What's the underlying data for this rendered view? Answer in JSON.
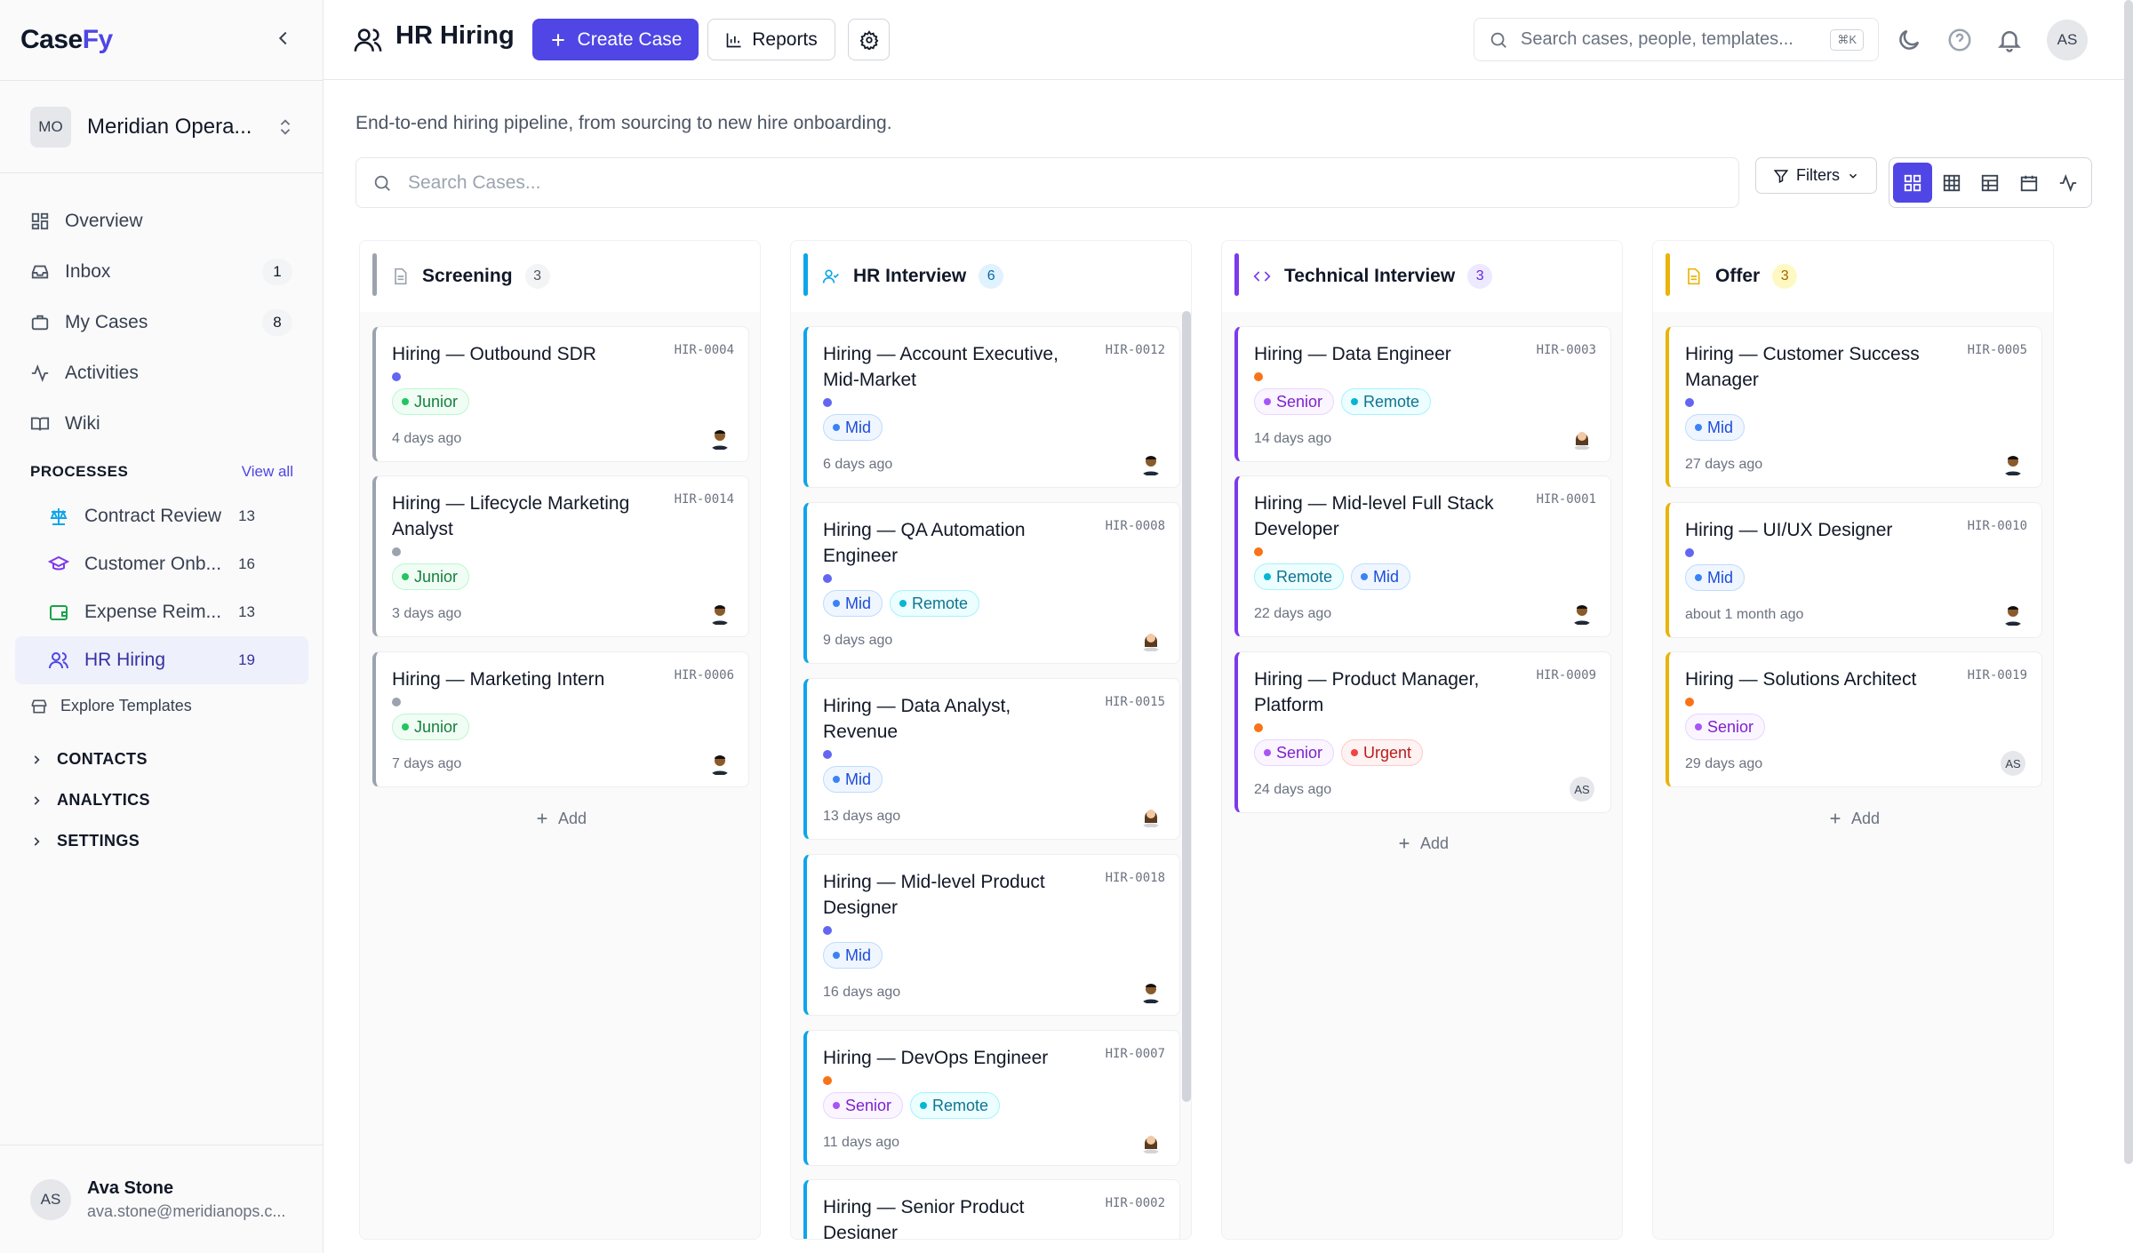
{
  "brand": {
    "part1": "Case",
    "part2": "Fy"
  },
  "workspace": {
    "initials": "MO",
    "name": "Meridian Opera..."
  },
  "nav": {
    "overview": "Overview",
    "inbox": "Inbox",
    "inbox_count": "1",
    "my_cases": "My Cases",
    "my_cases_count": "8",
    "activities": "Activities",
    "wiki": "Wiki"
  },
  "processes": {
    "heading": "PROCESSES",
    "view_all": "View all",
    "items": [
      {
        "label": "Contract Review",
        "count": "13"
      },
      {
        "label": "Customer Onb...",
        "count": "16"
      },
      {
        "label": "Expense Reim...",
        "count": "13"
      },
      {
        "label": "HR Hiring",
        "count": "19"
      }
    ],
    "explore": "Explore Templates"
  },
  "sections": {
    "contacts": "CONTACTS",
    "analytics": "ANALYTICS",
    "settings": "SETTINGS"
  },
  "user": {
    "initials": "AS",
    "name": "Ava Stone",
    "email": "ava.stone@meridianops.c..."
  },
  "topbar": {
    "title": "HR Hiring",
    "create_case": "Create Case",
    "reports": "Reports",
    "search_placeholder": "Search cases, people, templates...",
    "shortcut": "⌘K",
    "avatar": "AS"
  },
  "main": {
    "subtitle": "End-to-end hiring pipeline, from sourcing to new hire onboarding.",
    "search_cases_placeholder": "Search Cases...",
    "filters": "Filters"
  },
  "colors": {
    "accent": "#4f46e5",
    "screening": "#9ca3af",
    "hr_interview": "#0ea5e9",
    "technical_interview": "#7c3aed",
    "offer": "#eab308"
  },
  "columns": [
    {
      "title": "Screening",
      "count": "3",
      "add": "Add",
      "cards": [
        {
          "title": "Hiring — Outbound SDR",
          "id": "HIR-0004",
          "tags": [
            "Junior"
          ],
          "time": "4 days ago"
        },
        {
          "title": "Hiring — Lifecycle Marketing Analyst",
          "id": "HIR-0014",
          "tags": [
            "Junior"
          ],
          "time": "3 days ago"
        },
        {
          "title": "Hiring — Marketing Intern",
          "id": "HIR-0006",
          "tags": [
            "Junior"
          ],
          "time": "7 days ago"
        }
      ]
    },
    {
      "title": "HR Interview",
      "count": "6",
      "cards": [
        {
          "title": "Hiring — Account Executive, Mid-Market",
          "id": "HIR-0012",
          "tags": [
            "Mid"
          ],
          "time": "6 days ago"
        },
        {
          "title": "Hiring — QA Automation Engineer",
          "id": "HIR-0008",
          "tags": [
            "Mid",
            "Remote"
          ],
          "time": "9 days ago"
        },
        {
          "title": "Hiring — Data Analyst, Revenue",
          "id": "HIR-0015",
          "tags": [
            "Mid"
          ],
          "time": "13 days ago"
        },
        {
          "title": "Hiring — Mid-level Product Designer",
          "id": "HIR-0018",
          "tags": [
            "Mid"
          ],
          "time": "16 days ago"
        },
        {
          "title": "Hiring — DevOps Engineer",
          "id": "HIR-0007",
          "tags": [
            "Senior",
            "Remote"
          ],
          "time": "11 days ago"
        },
        {
          "title": "Hiring — Senior Product Designer",
          "id": "HIR-0002",
          "tags": [],
          "time": ""
        }
      ]
    },
    {
      "title": "Technical Interview",
      "count": "3",
      "add": "Add",
      "cards": [
        {
          "title": "Hiring — Data Engineer",
          "id": "HIR-0003",
          "tags": [
            "Senior",
            "Remote"
          ],
          "time": "14 days ago"
        },
        {
          "title": "Hiring — Mid-level Full Stack Developer",
          "id": "HIR-0001",
          "tags": [
            "Remote",
            "Mid"
          ],
          "time": "22 days ago"
        },
        {
          "title": "Hiring — Product Manager, Platform",
          "id": "HIR-0009",
          "tags": [
            "Senior",
            "Urgent"
          ],
          "time": "24 days ago",
          "avatar": "AS"
        }
      ]
    },
    {
      "title": "Offer",
      "count": "3",
      "add": "Add",
      "cards": [
        {
          "title": "Hiring — Customer Success Manager",
          "id": "HIR-0005",
          "tags": [
            "Mid"
          ],
          "time": "27 days ago"
        },
        {
          "title": "Hiring — UI/UX Designer",
          "id": "HIR-0010",
          "tags": [
            "Mid"
          ],
          "time": "about 1 month ago"
        },
        {
          "title": "Hiring — Solutions Architect",
          "id": "HIR-0019",
          "tags": [
            "Senior"
          ],
          "time": "29 days ago",
          "avatar": "AS"
        }
      ]
    }
  ]
}
